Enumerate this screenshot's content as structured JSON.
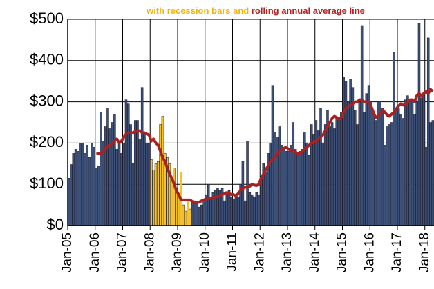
{
  "chart_data": {
    "type": "bar",
    "subtitle_parts": [
      {
        "text": "with recession bars and",
        "color": "#f2b600"
      },
      {
        "text": "rolling annual average line",
        "color": "#b22222"
      }
    ],
    "categories": [
      "Jan-05",
      null,
      null,
      null,
      null,
      null,
      null,
      null,
      null,
      null,
      null,
      null,
      "Jan-06",
      null,
      null,
      null,
      null,
      null,
      null,
      null,
      null,
      null,
      null,
      null,
      "Jan-07",
      null,
      null,
      null,
      null,
      null,
      null,
      null,
      null,
      null,
      null,
      null,
      "Jan-08",
      null,
      null,
      null,
      null,
      null,
      null,
      null,
      null,
      null,
      null,
      null,
      "Jan-09",
      null,
      null,
      null,
      null,
      null,
      null,
      null,
      null,
      null,
      null,
      null,
      "Jan-10",
      null,
      null,
      null,
      null,
      null,
      null,
      null,
      null,
      null,
      null,
      null,
      "Jan-11",
      null,
      null,
      null,
      null,
      null,
      null,
      null,
      null,
      null,
      null,
      null,
      "Jan-12",
      null,
      null,
      null,
      null,
      null,
      null,
      null,
      null,
      null,
      null,
      null,
      "Jan-13",
      null,
      null,
      null,
      null,
      null,
      null,
      null,
      null,
      null,
      null,
      null,
      "Jan-14",
      null,
      null,
      null,
      null,
      null,
      null,
      null,
      null,
      null,
      null,
      null,
      "Jan-15",
      null,
      null,
      null,
      null,
      null,
      null,
      null,
      null,
      null,
      null,
      null,
      "Jan-16",
      null,
      null,
      null,
      null,
      null,
      null,
      null,
      null,
      null,
      null,
      null,
      "Jan-17",
      null,
      null,
      null,
      null,
      null,
      null,
      null,
      null,
      null,
      null,
      null,
      "Jan-18",
      null,
      null,
      null
    ],
    "series": [
      {
        "type": "bar",
        "color": "#3d5078",
        "recession_color": "#f5c22e",
        "values": [
          115,
          148,
          175,
          185,
          180,
          200,
          200,
          175,
          195,
          165,
          200,
          190,
          140,
          145,
          275,
          205,
          240,
          285,
          235,
          250,
          270,
          185,
          205,
          175,
          200,
          305,
          295,
          245,
          150,
          255,
          255,
          210,
          335,
          220,
          200,
          200,
          160,
          135,
          150,
          155,
          245,
          265,
          175,
          165,
          150,
          110,
          140,
          90,
          70,
          130,
          50,
          35,
          60,
          40,
          60,
          60,
          55,
          45,
          50,
          60,
          75,
          100,
          65,
          80,
          85,
          90,
          85,
          90,
          60,
          80,
          85,
          70,
          65,
          75,
          70,
          100,
          155,
          60,
          205,
          80,
          75,
          70,
          80,
          75,
          120,
          150,
          130,
          175,
          200,
          340,
          225,
          215,
          240,
          195,
          185,
          180,
          180,
          195,
          250,
          185,
          175,
          180,
          185,
          225,
          200,
          170,
          245,
          220,
          255,
          230,
          285,
          200,
          245,
          280,
          240,
          250,
          235,
          260,
          260,
          275,
          360,
          350,
          300,
          355,
          335,
          280,
          245,
          300,
          485,
          275,
          320,
          340,
          300,
          275,
          255,
          300,
          300,
          285,
          195,
          240,
          245,
          250,
          420,
          285,
          285,
          270,
          260,
          305,
          315,
          300,
          305,
          270,
          300,
          490,
          310,
          315,
          190,
          455,
          250,
          255
        ],
        "recession": [
          false,
          false,
          false,
          false,
          false,
          false,
          false,
          false,
          false,
          false,
          false,
          false,
          false,
          false,
          false,
          false,
          false,
          false,
          false,
          false,
          false,
          false,
          false,
          false,
          false,
          false,
          false,
          false,
          false,
          false,
          false,
          false,
          false,
          false,
          false,
          false,
          true,
          true,
          true,
          true,
          true,
          true,
          true,
          true,
          true,
          true,
          true,
          true,
          true,
          true,
          true,
          true,
          true,
          true,
          false,
          false,
          false,
          false,
          false,
          false,
          false,
          false,
          false,
          false,
          false,
          false,
          false,
          false,
          false,
          false,
          false,
          false,
          false,
          false,
          false,
          false,
          false,
          false,
          false,
          false,
          false,
          false,
          false,
          false,
          false,
          false,
          false,
          false,
          false,
          false,
          false,
          false,
          false,
          false,
          false,
          false,
          false,
          false,
          false,
          false,
          false,
          false,
          false,
          false,
          false,
          false,
          false,
          false,
          false,
          false,
          false,
          false,
          false,
          false,
          false,
          false,
          false,
          false,
          false,
          false,
          false,
          false,
          false,
          false,
          false,
          false,
          false,
          false,
          false,
          false,
          false,
          false,
          false,
          false,
          false,
          false,
          false,
          false,
          false,
          false,
          false,
          false,
          false,
          false,
          false,
          false,
          false,
          false,
          false,
          false,
          false,
          false,
          false,
          false,
          false,
          false,
          false,
          false,
          false,
          false
        ]
      },
      {
        "type": "line",
        "color": "#a82222",
        "values": [
          null,
          null,
          null,
          null,
          null,
          null,
          null,
          null,
          null,
          null,
          null,
          null,
          175,
          175,
          175,
          178,
          185,
          190,
          195,
          200,
          205,
          210,
          200,
          205,
          215,
          222,
          225,
          225,
          225,
          228,
          228,
          230,
          225,
          225,
          222,
          220,
          205,
          210,
          200,
          195,
          180,
          165,
          155,
          140,
          125,
          115,
          100,
          85,
          75,
          62,
          62,
          62,
          62,
          62,
          58,
          55,
          55,
          57,
          60,
          62,
          65,
          65,
          67,
          68,
          70,
          70,
          72,
          75,
          78,
          80,
          78,
          75,
          75,
          72,
          78,
          85,
          90,
          93,
          93,
          95,
          100,
          98,
          97,
          100,
          115,
          125,
          135,
          145,
          155,
          160,
          168,
          175,
          180,
          185,
          188,
          190,
          185,
          182,
          180,
          178,
          175,
          175,
          180,
          185,
          190,
          195,
          200,
          202,
          205,
          210,
          215,
          220,
          230,
          240,
          250,
          260,
          265,
          262,
          258,
          262,
          275,
          283,
          288,
          292,
          295,
          300,
          300,
          305,
          305,
          300,
          300,
          300,
          290,
          275,
          262,
          265,
          270,
          280,
          275,
          268,
          265,
          270,
          275,
          283,
          290,
          295,
          292,
          292,
          298,
          305,
          305,
          300,
          315,
          320,
          315,
          320,
          325,
          320,
          330,
          325
        ]
      }
    ],
    "ylim": [
      0,
      500
    ],
    "yticks": [
      {
        "value": 0,
        "label": "$0"
      },
      {
        "value": 100,
        "label": "$100"
      },
      {
        "value": 200,
        "label": "$200"
      },
      {
        "value": 300,
        "label": "$300"
      },
      {
        "value": 400,
        "label": "$400"
      },
      {
        "value": 500,
        "label": "$500"
      }
    ],
    "grid": true
  }
}
